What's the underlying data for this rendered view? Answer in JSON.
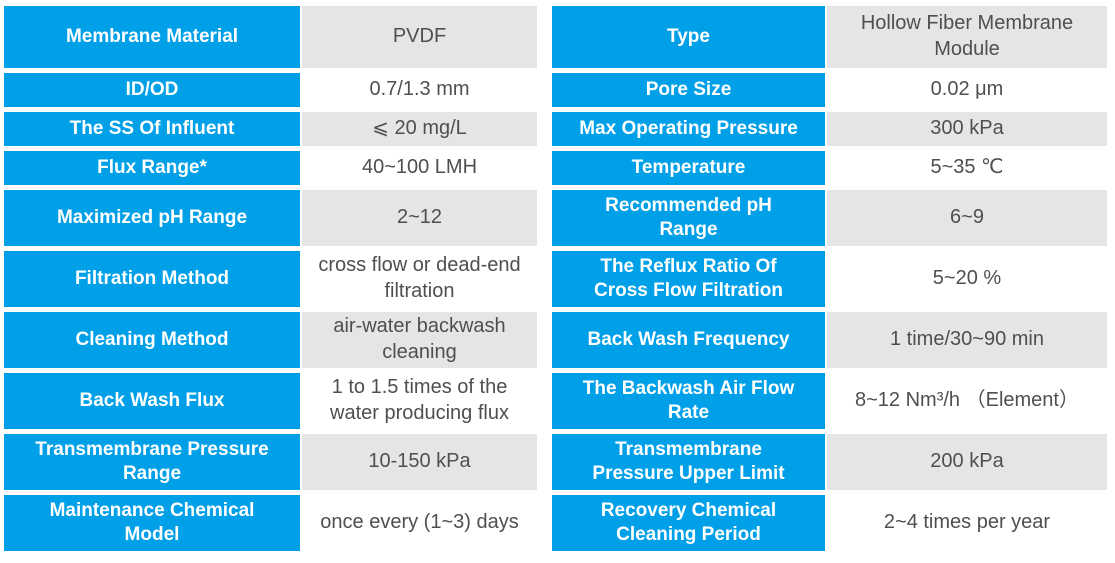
{
  "colors": {
    "header_blue": "#00a0e9",
    "row_alt_gray": "#e5e5e5",
    "value_text": "#4f4f4f"
  },
  "table": {
    "rows": [
      {
        "left_label": "Membrane Material",
        "left_value": "PVDF",
        "right_label": "Type",
        "right_value": "Hollow Fiber Membrane\nModule"
      },
      {
        "left_label": "ID/OD",
        "left_value": "0.7/1.3 mm",
        "right_label": "Pore Size",
        "right_value": "0.02 μm"
      },
      {
        "left_label": "The SS Of Influent",
        "left_value": "⩽ 20 mg/L",
        "right_label": "Max Operating Pressure",
        "right_value": "300 kPa"
      },
      {
        "left_label": "Flux Range*",
        "left_value": "40~100 LMH",
        "right_label": "Temperature",
        "right_value": "5~35 ℃"
      },
      {
        "left_label": "Maximized pH Range",
        "left_value": "2~12",
        "right_label": "Recommended pH\nRange",
        "right_value": "6~9"
      },
      {
        "left_label": "Filtration Method",
        "left_value": "cross flow or dead-end\nfiltration",
        "right_label": "The Reflux Ratio Of\nCross Flow Filtration",
        "right_value": "5~20 %"
      },
      {
        "left_label": "Cleaning Method",
        "left_value": "air-water backwash\ncleaning",
        "right_label": "Back Wash Frequency",
        "right_value": "1 time/30~90 min"
      },
      {
        "left_label": "Back Wash Flux",
        "left_value": "1 to 1.5 times of the\nwater producing flux",
        "right_label": "The Backwash Air Flow\nRate",
        "right_value": "8~12 Nm³/h （Element）"
      },
      {
        "left_label": "Transmembrane Pressure\nRange",
        "left_value": "10-150 kPa",
        "right_label": "Transmembrane\nPressure Upper Limit",
        "right_value": "200 kPa"
      },
      {
        "left_label": "Maintenance Chemical\nModel",
        "left_value": "once every (1~3) days",
        "right_label": "Recovery Chemical\nCleaning Period",
        "right_value": "2~4 times per year"
      }
    ]
  }
}
